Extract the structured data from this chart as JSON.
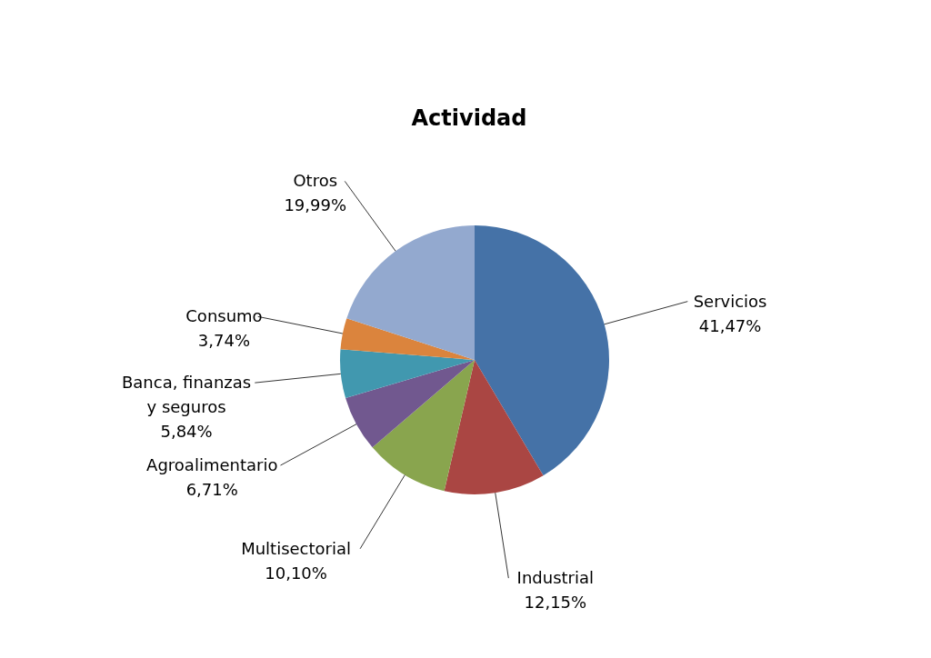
{
  "chart_data": {
    "type": "pie",
    "title": "Actividad",
    "categories": [
      "Servicios",
      "Industrial",
      "Multisectorial",
      "Agroalimentario",
      "Banca, finanzas y seguros",
      "Consumo",
      "Otros"
    ],
    "values": [
      41.47,
      12.15,
      10.1,
      6.71,
      5.84,
      3.74,
      19.99
    ],
    "value_labels": [
      "41,47%",
      "12,15%",
      "10,10%",
      "6,71%",
      "5,84%",
      "3,74%",
      "19,99%"
    ],
    "colors": [
      "#4572a7",
      "#aa4643",
      "#89a54e",
      "#71588f",
      "#4198af",
      "#db843d",
      "#93a9cf"
    ]
  }
}
